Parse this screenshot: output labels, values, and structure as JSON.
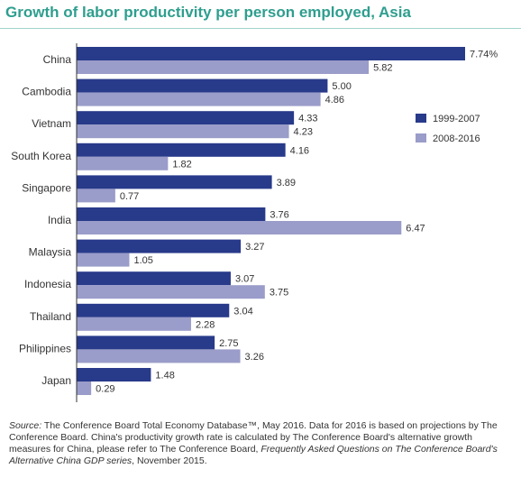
{
  "header": {
    "title": "Growth of labor productivity per person employed, Asia"
  },
  "source": {
    "label": "Source:",
    "text1": " The Conference Board Total Economy Database™, May 2016. Data for 2016 is based on projections by The Conference Board. China's productivity growth rate is calculated by The Conference Board's alternative growth measures for China, please refer to The Conference Board, ",
    "italic": "Frequently Asked Questions on The Conference Board's Alternative China GDP series",
    "text2": ", November 2015."
  },
  "colors": {
    "series1": "#283a8a",
    "series2": "#9a9cc9",
    "axis": "#333333",
    "title": "#2e9e8e"
  },
  "chart_data": {
    "type": "bar",
    "orientation": "horizontal",
    "title": "Growth of labor productivity per person employed, Asia",
    "categories": [
      "China",
      "Cambodia",
      "Vietnam",
      "South Korea",
      "Singapore",
      "India",
      "Malaysia",
      "Indonesia",
      "Thailand",
      "Philippines",
      "Japan"
    ],
    "series": [
      {
        "name": "1999-2007",
        "values": [
          7.74,
          5.0,
          4.33,
          4.16,
          3.89,
          3.76,
          3.27,
          3.07,
          3.04,
          2.75,
          1.48
        ],
        "labels": [
          "7.74%",
          "5.00",
          "4.33",
          "4.16",
          "3.89",
          "3.76",
          "3.27",
          "3.07",
          "3.04",
          "2.75",
          "1.48"
        ]
      },
      {
        "name": "2008-2016",
        "values": [
          5.82,
          4.86,
          4.23,
          1.82,
          0.77,
          6.47,
          1.05,
          3.75,
          2.28,
          3.26,
          0.29
        ],
        "labels": [
          "5.82",
          "4.86",
          "4.23",
          "1.82",
          "0.77",
          "6.47",
          "1.05",
          "3.75",
          "2.28",
          "3.26",
          "0.29"
        ]
      }
    ],
    "xlim": [
      0,
      7.74
    ],
    "legend": "right",
    "grid": false
  }
}
